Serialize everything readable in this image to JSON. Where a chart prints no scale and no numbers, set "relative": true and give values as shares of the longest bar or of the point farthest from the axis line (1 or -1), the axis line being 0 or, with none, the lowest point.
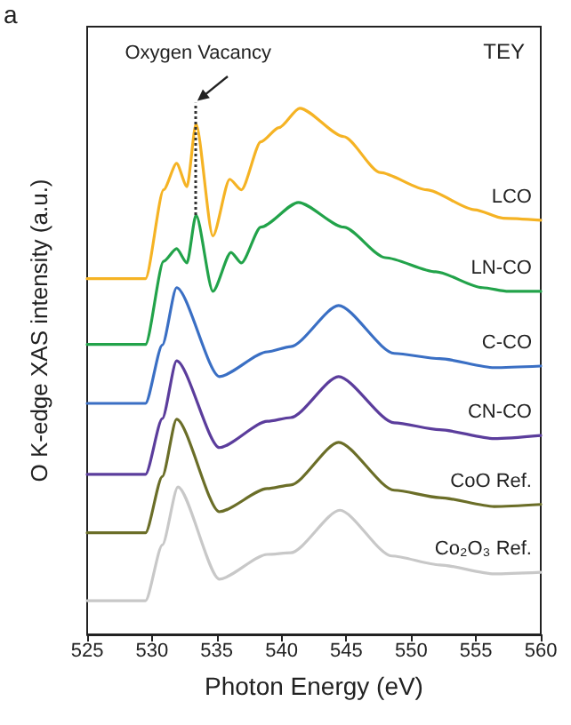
{
  "chart_data": {
    "type": "line",
    "relative": true,
    "xlabel": "Photon Energy (eV)",
    "ylabel": "O K-edge XAS intensity (a.u.)",
    "xlim": [
      525,
      560
    ],
    "xticks": [
      525,
      530,
      535,
      540,
      545,
      550,
      555,
      560
    ],
    "grid": false,
    "legend": false,
    "marker": "none",
    "line_style": "solid",
    "annotations": [
      "a",
      "TEY"
    ],
    "ref_lines": [
      {
        "axis": "x",
        "value": 533.4,
        "label": "Oxygen Vacancy",
        "line_style": "dotted",
        "color": "#333333"
      }
    ],
    "series": [
      {
        "name": "LCO",
        "color": "#f5b324",
        "x": [
          525,
          529.5,
          530.9,
          531.9,
          532.7,
          533.4,
          534.7,
          536.0,
          536.9,
          538.4,
          539.8,
          541.4,
          544.8,
          547.6,
          551.2,
          554.9,
          557.1,
          560
        ],
        "values": [
          0.676,
          0.676,
          0.845,
          0.895,
          0.851,
          0.97,
          0.757,
          0.865,
          0.845,
          0.936,
          0.963,
          1.0,
          0.946,
          0.878,
          0.845,
          0.807,
          0.791,
          0.787
        ]
      },
      {
        "name": "LN-CO",
        "color": "#22a34a",
        "x": [
          525,
          529.5,
          530.9,
          531.9,
          532.7,
          533.4,
          534.7,
          536.1,
          536.9,
          538.4,
          541.3,
          544.8,
          548.0,
          551.9,
          555.5,
          557.5,
          560
        ],
        "values": [
          0.551,
          0.551,
          0.709,
          0.733,
          0.706,
          0.797,
          0.652,
          0.726,
          0.706,
          0.774,
          0.821,
          0.774,
          0.716,
          0.689,
          0.659,
          0.652,
          0.652
        ]
      },
      {
        "name": "C-CO",
        "color": "#3a6fc4",
        "x": [
          525,
          529.5,
          530.8,
          531.9,
          535.2,
          538.9,
          540.7,
          544.4,
          548.7,
          552.2,
          556.4,
          560
        ],
        "values": [
          0.439,
          0.439,
          0.55,
          0.659,
          0.49,
          0.537,
          0.547,
          0.625,
          0.534,
          0.524,
          0.507,
          0.51
        ]
      },
      {
        "name": "CN-CO",
        "color": "#5b3d9c",
        "x": [
          525,
          529.5,
          530.8,
          531.9,
          535.2,
          538.9,
          540.7,
          544.4,
          548.7,
          552.2,
          556.4,
          560
        ],
        "values": [
          0.304,
          0.304,
          0.41,
          0.52,
          0.355,
          0.405,
          0.412,
          0.49,
          0.402,
          0.389,
          0.372,
          0.378
        ]
      },
      {
        "name": "CoO Ref.",
        "color": "#6b6e28",
        "x": [
          525,
          529.5,
          530.8,
          531.9,
          535.2,
          538.9,
          540.7,
          544.4,
          548.7,
          552.2,
          556.4,
          560
        ],
        "values": [
          0.193,
          0.193,
          0.3,
          0.409,
          0.233,
          0.277,
          0.284,
          0.365,
          0.274,
          0.26,
          0.243,
          0.247
        ]
      },
      {
        "name": "Co₂O₃ Ref.",
        "color": "#c8c8c8",
        "x": [
          525,
          529.5,
          530.8,
          532.0,
          535.2,
          538.9,
          540.7,
          544.5,
          548.5,
          552.2,
          556.4,
          560
        ],
        "values": [
          0.064,
          0.064,
          0.17,
          0.28,
          0.105,
          0.152,
          0.155,
          0.236,
          0.149,
          0.132,
          0.115,
          0.118
        ]
      }
    ]
  }
}
